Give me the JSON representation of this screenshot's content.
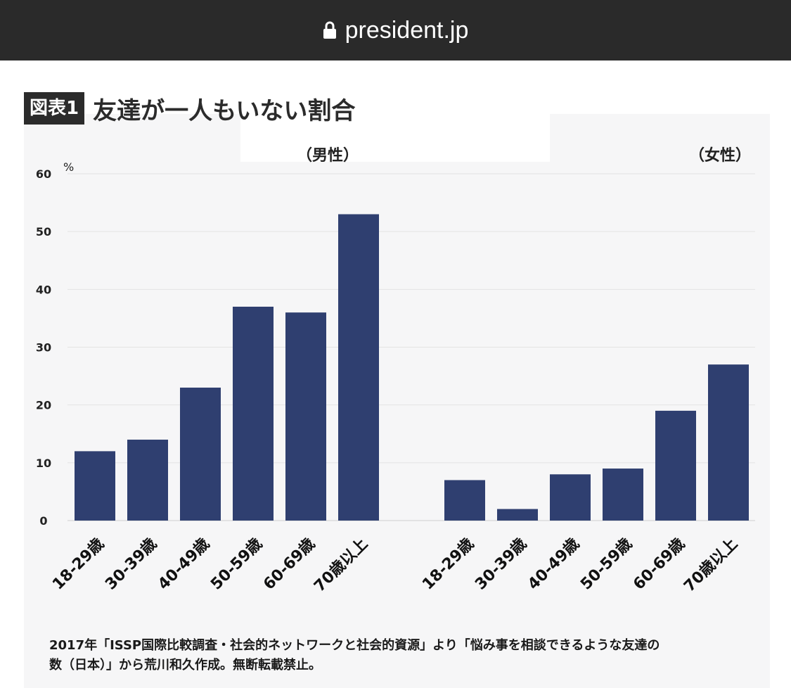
{
  "browser": {
    "url": "president.jp",
    "icon": "lock-icon"
  },
  "header": {
    "badge": "図表1",
    "title": "友達が一人もいない割合"
  },
  "chart_data": {
    "type": "bar",
    "unit_label": "%",
    "ylim": [
      0,
      60
    ],
    "yticks": [
      0,
      10,
      20,
      30,
      40,
      50,
      60
    ],
    "grid": true,
    "bar_color": "#2f3f70",
    "groups": [
      {
        "name": "（男性）",
        "categories": [
          "18-29歳",
          "30-39歳",
          "40-49歳",
          "50-59歳",
          "60-69歳",
          "70歳以上"
        ],
        "values": [
          12,
          14,
          23,
          37,
          36,
          53
        ]
      },
      {
        "name": "（女性）",
        "categories": [
          "18-29歳",
          "30-39歳",
          "40-49歳",
          "50-59歳",
          "60-69歳",
          "70歳以上"
        ],
        "values": [
          7,
          2,
          8,
          9,
          19,
          27
        ]
      }
    ]
  },
  "footer": {
    "note_line1": "2017年「ISSP国際比較調査・社会的ネットワークと社会的資源」より「悩み事を相談できるような友達の",
    "note_line2": "数（日本）」から荒川和久作成。無断転載禁止。"
  }
}
